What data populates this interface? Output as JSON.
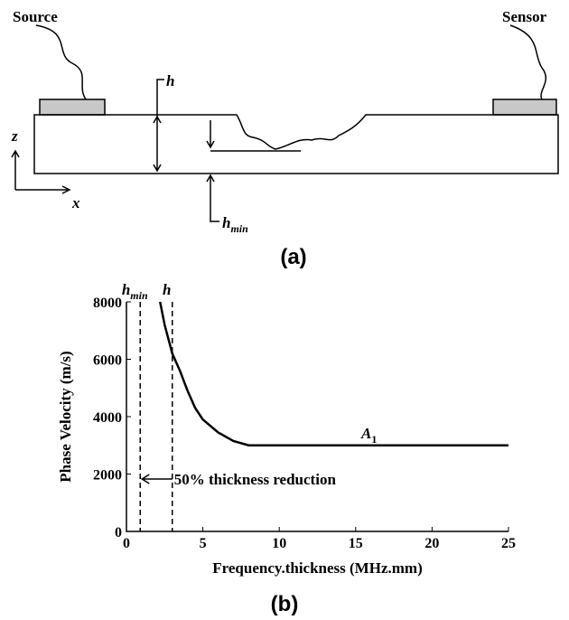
{
  "diagram": {
    "source": "Source",
    "sensor": "Sensor",
    "h": "h",
    "h_min": {
      "text": "h",
      "sub": "min"
    },
    "z": "z",
    "x": "x",
    "caption": "(a)"
  },
  "chart_data": {
    "type": "line",
    "caption": "(b)",
    "x_label": "Frequency.thickness (MHz.mm)",
    "y_label": "Phase Velocity (m/s)",
    "xlim": [
      0,
      25
    ],
    "ylim": [
      0,
      8000
    ],
    "xticks": [
      0,
      5,
      10,
      15,
      20,
      25
    ],
    "yticks": [
      0,
      2000,
      4000,
      6000,
      8000
    ],
    "vlines": [
      0.9,
      3
    ],
    "vline_labels": [
      {
        "text": "h",
        "sub": "min"
      },
      {
        "text": "h"
      }
    ],
    "annotation": "50% thickness reduction",
    "series": [
      {
        "name": {
          "text": "A",
          "sub": "1"
        },
        "color": "#000000",
        "x": [
          2.2,
          2.5,
          3,
          3.5,
          4,
          4.5,
          5,
          6,
          7,
          8,
          10,
          15,
          20,
          25
        ],
        "values": [
          8000,
          7200,
          6200,
          5600,
          4900,
          4300,
          3900,
          3450,
          3150,
          3000,
          3000,
          3000,
          3000,
          3000
        ]
      }
    ]
  }
}
